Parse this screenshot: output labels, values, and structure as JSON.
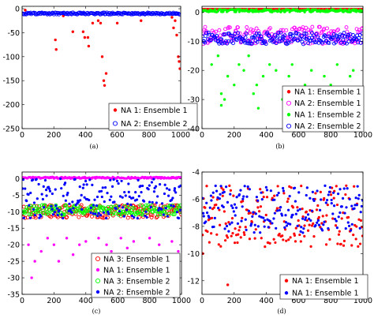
{
  "chart_data": [
    {
      "id": "a",
      "type": "scatter",
      "caption": "(a)",
      "xlim": [
        0,
        1000
      ],
      "ylim": [
        -250,
        5
      ],
      "xticks": [
        0,
        200,
        400,
        600,
        800,
        1000
      ],
      "yticks": [
        0,
        -50,
        -100,
        -150,
        -200,
        -250
      ],
      "grid": false,
      "legend": {
        "placement": "bottom-right"
      },
      "series": [
        {
          "name": "NA 1: Ensemble 1",
          "color": "#ff0000",
          "marker": "dot",
          "band": [
            10,
            10
          ],
          "outliers": [
            [
              20,
              -3
            ],
            [
              210,
              -65
            ],
            [
              215,
              -85
            ],
            [
              260,
              -15
            ],
            [
              320,
              -48
            ],
            [
              385,
              -48
            ],
            [
              395,
              -60
            ],
            [
              415,
              -60
            ],
            [
              420,
              -78
            ],
            [
              445,
              -30
            ],
            [
              480,
              -25
            ],
            [
              495,
              -30
            ],
            [
              505,
              -100
            ],
            [
              515,
              -150
            ],
            [
              520,
              -160
            ],
            [
              530,
              -135
            ],
            [
              600,
              -30
            ],
            [
              750,
              -25
            ],
            [
              945,
              -18
            ],
            [
              955,
              -40
            ],
            [
              965,
              -25
            ],
            [
              975,
              -55
            ],
            [
              985,
              -100
            ],
            [
              990,
              -110
            ],
            [
              995,
              -125
            ],
            [
              1000,
              -200
            ]
          ]
        },
        {
          "name": "NA 2: Ensemble 2",
          "color": "#0000ff",
          "marker": "circle",
          "band": [
            -8,
            -12
          ],
          "outliers": []
        }
      ]
    },
    {
      "id": "b",
      "type": "scatter",
      "caption": "(b)",
      "xlim": [
        0,
        1000
      ],
      "ylim": [
        -40,
        2
      ],
      "xticks": [
        0,
        200,
        400,
        600,
        800,
        1000
      ],
      "yticks": [
        0,
        -10,
        -20,
        -30,
        -40
      ],
      "grid": false,
      "legend": {
        "placement": "bottom-right"
      },
      "series": [
        {
          "name": "NA 1: Ensemble 1",
          "color": "#ff0000",
          "marker": "dot",
          "band": [
            1,
            1
          ],
          "outliers": []
        },
        {
          "name": "NA 2: Ensemble 1",
          "color": "#ff00ff",
          "marker": "circle",
          "band": [
            -5,
            -11
          ],
          "outliers": []
        },
        {
          "name": "NA 1: Ensemble 2",
          "color": "#00ff00",
          "marker": "dot",
          "band": [
            0,
            1
          ],
          "outliers": [
            [
              60,
              -18
            ],
            [
              100,
              -15
            ],
            [
              120,
              -28
            ],
            [
              140,
              -30
            ],
            [
              160,
              -22
            ],
            [
              200,
              -25
            ],
            [
              230,
              -18
            ],
            [
              260,
              -20
            ],
            [
              290,
              -15
            ],
            [
              320,
              -28
            ],
            [
              340,
              -25
            ],
            [
              380,
              -22
            ],
            [
              420,
              -18
            ],
            [
              460,
              -20
            ],
            [
              500,
              -30
            ],
            [
              540,
              -22
            ],
            [
              560,
              -18
            ],
            [
              600,
              -28
            ],
            [
              640,
              -25
            ],
            [
              680,
              -20
            ],
            [
              700,
              -35
            ],
            [
              760,
              -22
            ],
            [
              800,
              -25
            ],
            [
              840,
              -18
            ],
            [
              880,
              -28
            ],
            [
              920,
              -22
            ],
            [
              940,
              -20
            ],
            [
              120,
              -32
            ],
            [
              350,
              -33
            ]
          ]
        },
        {
          "name": "NA 2: Ensemble 2",
          "color": "#0000ff",
          "marker": "circle",
          "band": [
            -7,
            -11
          ],
          "outliers": []
        }
      ]
    },
    {
      "id": "c",
      "type": "scatter",
      "caption": "(c)",
      "xlim": [
        0,
        1000
      ],
      "ylim": [
        -35,
        2
      ],
      "xticks": [
        0,
        200,
        400,
        600,
        800,
        1000
      ],
      "yticks": [
        0,
        -5,
        -10,
        -15,
        -20,
        -25,
        -30,
        -35
      ],
      "grid": false,
      "legend": {
        "placement": "bottom-right"
      },
      "series": [
        {
          "name": "NA 3: Ensemble 1",
          "color": "#ff0000",
          "marker": "circle",
          "band": [
            -8,
            -12
          ],
          "outliers": []
        },
        {
          "name": "NA 1: Ensemble 1",
          "color": "#ff00ff",
          "marker": "dot",
          "band": [
            0,
            0.5
          ],
          "outliers": [
            [
              40,
              -20
            ],
            [
              60,
              -30
            ],
            [
              80,
              -25
            ],
            [
              120,
              -22
            ],
            [
              160,
              -18
            ],
            [
              200,
              -20
            ],
            [
              230,
              -25
            ],
            [
              280,
              -18
            ],
            [
              320,
              -23
            ],
            [
              360,
              -20
            ],
            [
              400,
              -19
            ],
            [
              450,
              -24
            ],
            [
              480,
              -18
            ],
            [
              530,
              -20
            ],
            [
              560,
              -22
            ],
            [
              620,
              -18
            ],
            [
              660,
              -21
            ],
            [
              700,
              -19
            ],
            [
              740,
              -23
            ],
            [
              800,
              -18
            ],
            [
              860,
              -20
            ],
            [
              900,
              -25
            ],
            [
              940,
              -19
            ],
            [
              980,
              -22
            ]
          ]
        },
        {
          "name": "NA 3: Ensemble 2",
          "color": "#00ff00",
          "marker": "circle",
          "band": [
            -8,
            -11
          ],
          "outliers": []
        },
        {
          "name": "NA 2: Ensemble 2",
          "color": "#0000ff",
          "marker": "dot",
          "band": [
            0,
            -12
          ],
          "outliers": []
        }
      ]
    },
    {
      "id": "d",
      "type": "scatter",
      "caption": "(d)",
      "xlim": [
        0,
        1000
      ],
      "ylim": [
        -13,
        -4
      ],
      "xticks": [
        0,
        200,
        400,
        600,
        800,
        1000
      ],
      "yticks": [
        -4,
        -6,
        -8,
        -10,
        -12
      ],
      "grid": false,
      "legend": {
        "placement": "bottom-right"
      },
      "series": [
        {
          "name": "NA 1: Ensemble 1",
          "color": "#ff0000",
          "marker": "dot",
          "band": [
            -5,
            -9.5
          ],
          "outliers": [
            [
              160,
              -12.3
            ],
            [
              5,
              -10
            ]
          ]
        },
        {
          "name": "NA 1: Ensemble 1",
          "color": "#0000ff",
          "marker": "dot",
          "band": [
            -5,
            -8.5
          ],
          "outliers": []
        }
      ]
    }
  ]
}
